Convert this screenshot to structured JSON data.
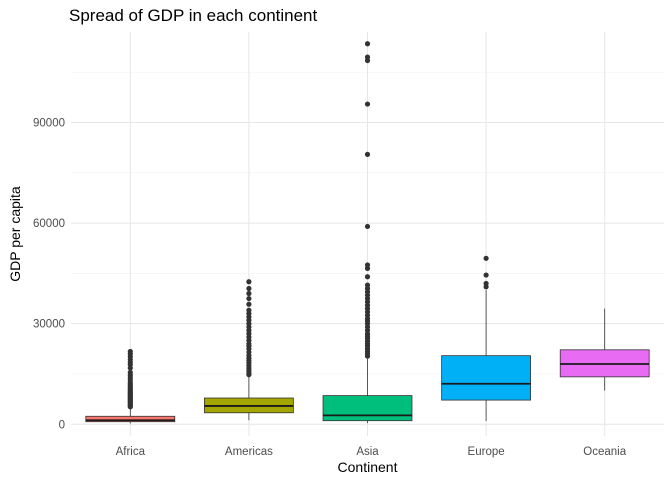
{
  "chart_data": {
    "type": "boxplot",
    "title": "Spread of GDP in each continent",
    "xlabel": "Continent",
    "ylabel": "GDP per capita",
    "ylim": [
      -3500,
      117000
    ],
    "y_ticks": [
      0,
      30000,
      60000,
      90000
    ],
    "y_tick_labels": [
      "0",
      "30000",
      "60000",
      "90000"
    ],
    "categories": [
      "Africa",
      "Americas",
      "Asia",
      "Europe",
      "Oceania"
    ],
    "grid": true,
    "legend": "none",
    "boxes": [
      {
        "category": "Africa",
        "color": "#F8766D",
        "whisker_low": 240,
        "q1": 760,
        "median": 1190,
        "q3": 2380,
        "whisker_high": 4800,
        "outliers": [
          5200,
          5500,
          5800,
          6100,
          6400,
          6700,
          7000,
          7300,
          7600,
          7900,
          8200,
          8500,
          8800,
          9100,
          9400,
          9800,
          10200,
          10600,
          11000,
          11500,
          12000,
          12500,
          13300,
          14000,
          14700,
          15500,
          16800,
          17800,
          18500,
          19300,
          20200,
          21000,
          21700
        ]
      },
      {
        "category": "Americas",
        "color": "#A3A500",
        "whisker_low": 1200,
        "q1": 3430,
        "median": 5470,
        "q3": 7830,
        "whisker_high": 14300,
        "outliers": [
          14800,
          15300,
          16000,
          16700,
          17500,
          18300,
          19000,
          19700,
          20500,
          21500,
          22500,
          23300,
          24000,
          25000,
          26000,
          27000,
          28000,
          29000,
          30000,
          31000,
          32000,
          33000,
          34000,
          35800,
          37500,
          39000,
          40500,
          42500
        ]
      },
      {
        "category": "Asia",
        "color": "#00BF7D",
        "whisker_low": 330,
        "q1": 1060,
        "median": 2650,
        "q3": 8550,
        "whisker_high": 19500,
        "outliers": [
          20300,
          21000,
          21700,
          22500,
          23300,
          24000,
          24800,
          25600,
          26300,
          27000,
          28000,
          29000,
          30000,
          30800,
          31500,
          32500,
          33500,
          34500,
          35500,
          36500,
          37500,
          38500,
          39500,
          40500,
          41500,
          44000,
          46500,
          47500,
          59000,
          80500,
          95500,
          108500,
          109500,
          113500
        ]
      },
      {
        "category": "Europe",
        "color": "#00B0F6",
        "whisker_low": 970,
        "q1": 7210,
        "median": 12080,
        "q3": 20460,
        "whisker_high": 40000,
        "outliers": [
          41000,
          42000,
          44500,
          49500
        ]
      },
      {
        "category": "Oceania",
        "color": "#E76BF3",
        "whisker_low": 10040,
        "q1": 14140,
        "median": 17980,
        "q3": 22210,
        "whisker_high": 34500,
        "outliers": []
      }
    ]
  }
}
